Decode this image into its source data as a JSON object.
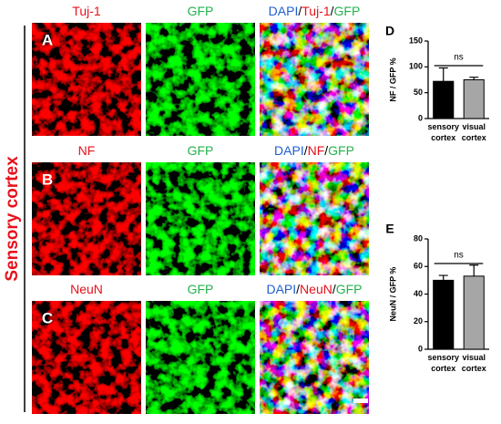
{
  "side_label": "Sensory cortex",
  "rows": [
    {
      "letter": "A",
      "columns": [
        {
          "parts": [
            {
              "text": "Tuj-1",
              "color": "#e8111a"
            }
          ]
        },
        {
          "parts": [
            {
              "text": "GFP",
              "color": "#22b24c"
            }
          ]
        },
        {
          "parts": [
            {
              "text": "DAPI",
              "color": "#1f5fd1"
            },
            {
              "text": "/",
              "color": "#000000"
            },
            {
              "text": "Tuj-1",
              "color": "#e8111a"
            },
            {
              "text": "/",
              "color": "#000000"
            },
            {
              "text": "GFP",
              "color": "#22b24c"
            }
          ]
        }
      ]
    },
    {
      "letter": "B",
      "columns": [
        {
          "parts": [
            {
              "text": "NF",
              "color": "#e8111a"
            }
          ]
        },
        {
          "parts": [
            {
              "text": "GFP",
              "color": "#22b24c"
            }
          ]
        },
        {
          "parts": [
            {
              "text": "DAPI",
              "color": "#1f5fd1"
            },
            {
              "text": "/",
              "color": "#000000"
            },
            {
              "text": "NF",
              "color": "#e8111a"
            },
            {
              "text": "/",
              "color": "#000000"
            },
            {
              "text": "GFP",
              "color": "#22b24c"
            }
          ]
        }
      ]
    },
    {
      "letter": "C",
      "columns": [
        {
          "parts": [
            {
              "text": "NeuN",
              "color": "#e8111a"
            }
          ]
        },
        {
          "parts": [
            {
              "text": "GFP",
              "color": "#22b24c"
            }
          ]
        },
        {
          "parts": [
            {
              "text": "DAPI",
              "color": "#1f5fd1"
            },
            {
              "text": "/",
              "color": "#000000"
            },
            {
              "text": "NeuN",
              "color": "#e8111a"
            },
            {
              "text": "/",
              "color": "#000000"
            },
            {
              "text": "GFP",
              "color": "#22b24c"
            }
          ]
        }
      ]
    }
  ],
  "chart_data": [
    {
      "type": "bar",
      "panel": "D",
      "ylabel": "NF / GFP %",
      "categories": [
        "sensory cortex",
        "visual cortex"
      ],
      "values": [
        72,
        75
      ],
      "errors": [
        26,
        5
      ],
      "colors": [
        "#000000",
        "#a6a6a6"
      ],
      "ylim": [
        0,
        150
      ],
      "yticks": [
        0,
        50,
        100,
        150
      ],
      "annotation": "ns"
    },
    {
      "type": "bar",
      "panel": "E",
      "ylabel": "NeuN / GFP %",
      "categories": [
        "sensory cortex",
        "visual cortex"
      ],
      "values": [
        50,
        53
      ],
      "errors": [
        3.5,
        8
      ],
      "colors": [
        "#000000",
        "#a6a6a6"
      ],
      "ylim": [
        0,
        80
      ],
      "yticks": [
        0,
        20,
        40,
        60,
        80
      ],
      "annotation": "ns"
    }
  ]
}
